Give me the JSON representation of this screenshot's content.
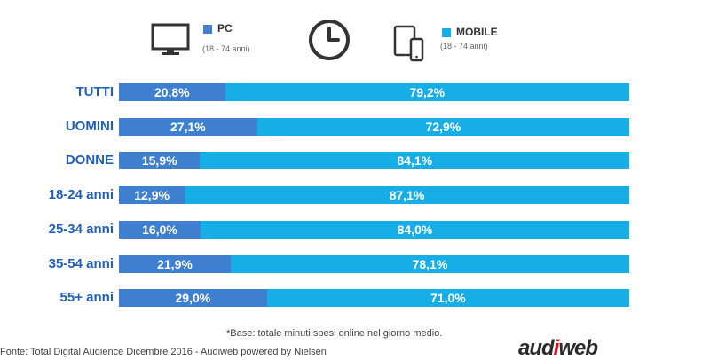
{
  "legend": {
    "pc": {
      "label": "PC",
      "note": "(18 - 74 anni)",
      "icon": "monitor-icon"
    },
    "clock_icon": "clock-icon",
    "mobile": {
      "label": "MOBILE",
      "note": "(18 - 74 anni)",
      "icon": "tablet-phone-icon"
    }
  },
  "colors": {
    "pc": "#3f7fd0",
    "mobile": "#17aee8",
    "label": "#1f5fbf"
  },
  "chart_data": {
    "type": "bar",
    "orientation": "horizontal",
    "stacked": true,
    "percent": true,
    "categories": [
      "TUTTI",
      "UOMINI",
      "DONNE",
      "18-24 anni",
      "25-34 anni",
      "35-54 anni",
      "55+ anni"
    ],
    "series": [
      {
        "name": "PC",
        "values": [
          20.8,
          27.1,
          15.9,
          12.9,
          16.0,
          21.9,
          29.0
        ],
        "labels": [
          "20,8%",
          "27,1%",
          "15,9%",
          "12,9%",
          "16,0%",
          "21,9%",
          "29,0%"
        ]
      },
      {
        "name": "MOBILE",
        "values": [
          79.2,
          72.9,
          84.1,
          87.1,
          84.0,
          78.1,
          71.0
        ],
        "labels": [
          "79,2%",
          "72,9%",
          "84,1%",
          "87,1%",
          "84,0%",
          "78,1%",
          "71,0%"
        ]
      }
    ],
    "xlim": [
      0,
      100
    ]
  },
  "footnote": "*Base: totale minuti spesi online nel giorno medio.",
  "source": "Fonte: Total Digital Audience Dicembre 2016 - Audiweb powered by Nielsen",
  "logo": {
    "text_a": "aud",
    "text_b": "i",
    "text_c": "web"
  }
}
